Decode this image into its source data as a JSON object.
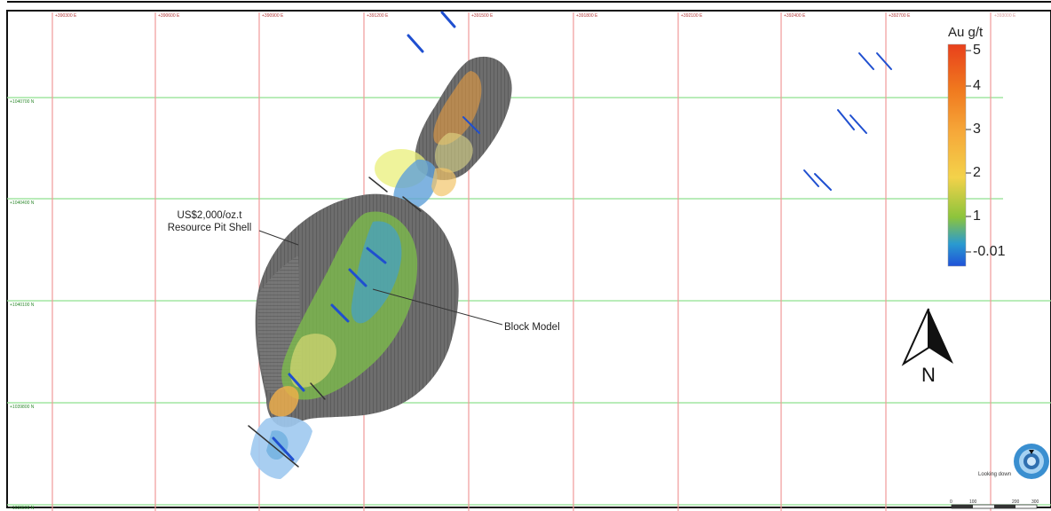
{
  "map": {
    "easting_labels": [
      "+390300 E",
      "+390600 E",
      "+390900 E",
      "+391200 E",
      "+391500 E",
      "+391800 E",
      "+392100 E",
      "+392400 E",
      "+392700 E"
    ],
    "northing_labels": [
      "+1040700 N",
      "+1040400 N",
      "+1040100 N",
      "+1039800 N",
      "+1039500 N"
    ],
    "corner_label": "+393000 E"
  },
  "annotations": {
    "pit_shell_line1": "US$2,000/oz.t",
    "pit_shell_line2": "Resource Pit Shell",
    "block_model": "Block Model"
  },
  "legend": {
    "title": "Au g/t",
    "labels": [
      "5",
      "4",
      "3",
      "2",
      "1",
      "-0.01"
    ],
    "colors": [
      "#e8401c",
      "#f0781e",
      "#f6a93a",
      "#f3d24a",
      "#8cc43c",
      "#2a9ad0",
      "#1f52d8"
    ]
  },
  "north_arrow": {
    "letter": "N",
    "icon": "north-arrow-icon"
  },
  "view": {
    "label": "Looking down",
    "icon": "view-cube-icon"
  },
  "scale_bar": {
    "labels": [
      "0",
      "100",
      "200",
      "300"
    ]
  }
}
